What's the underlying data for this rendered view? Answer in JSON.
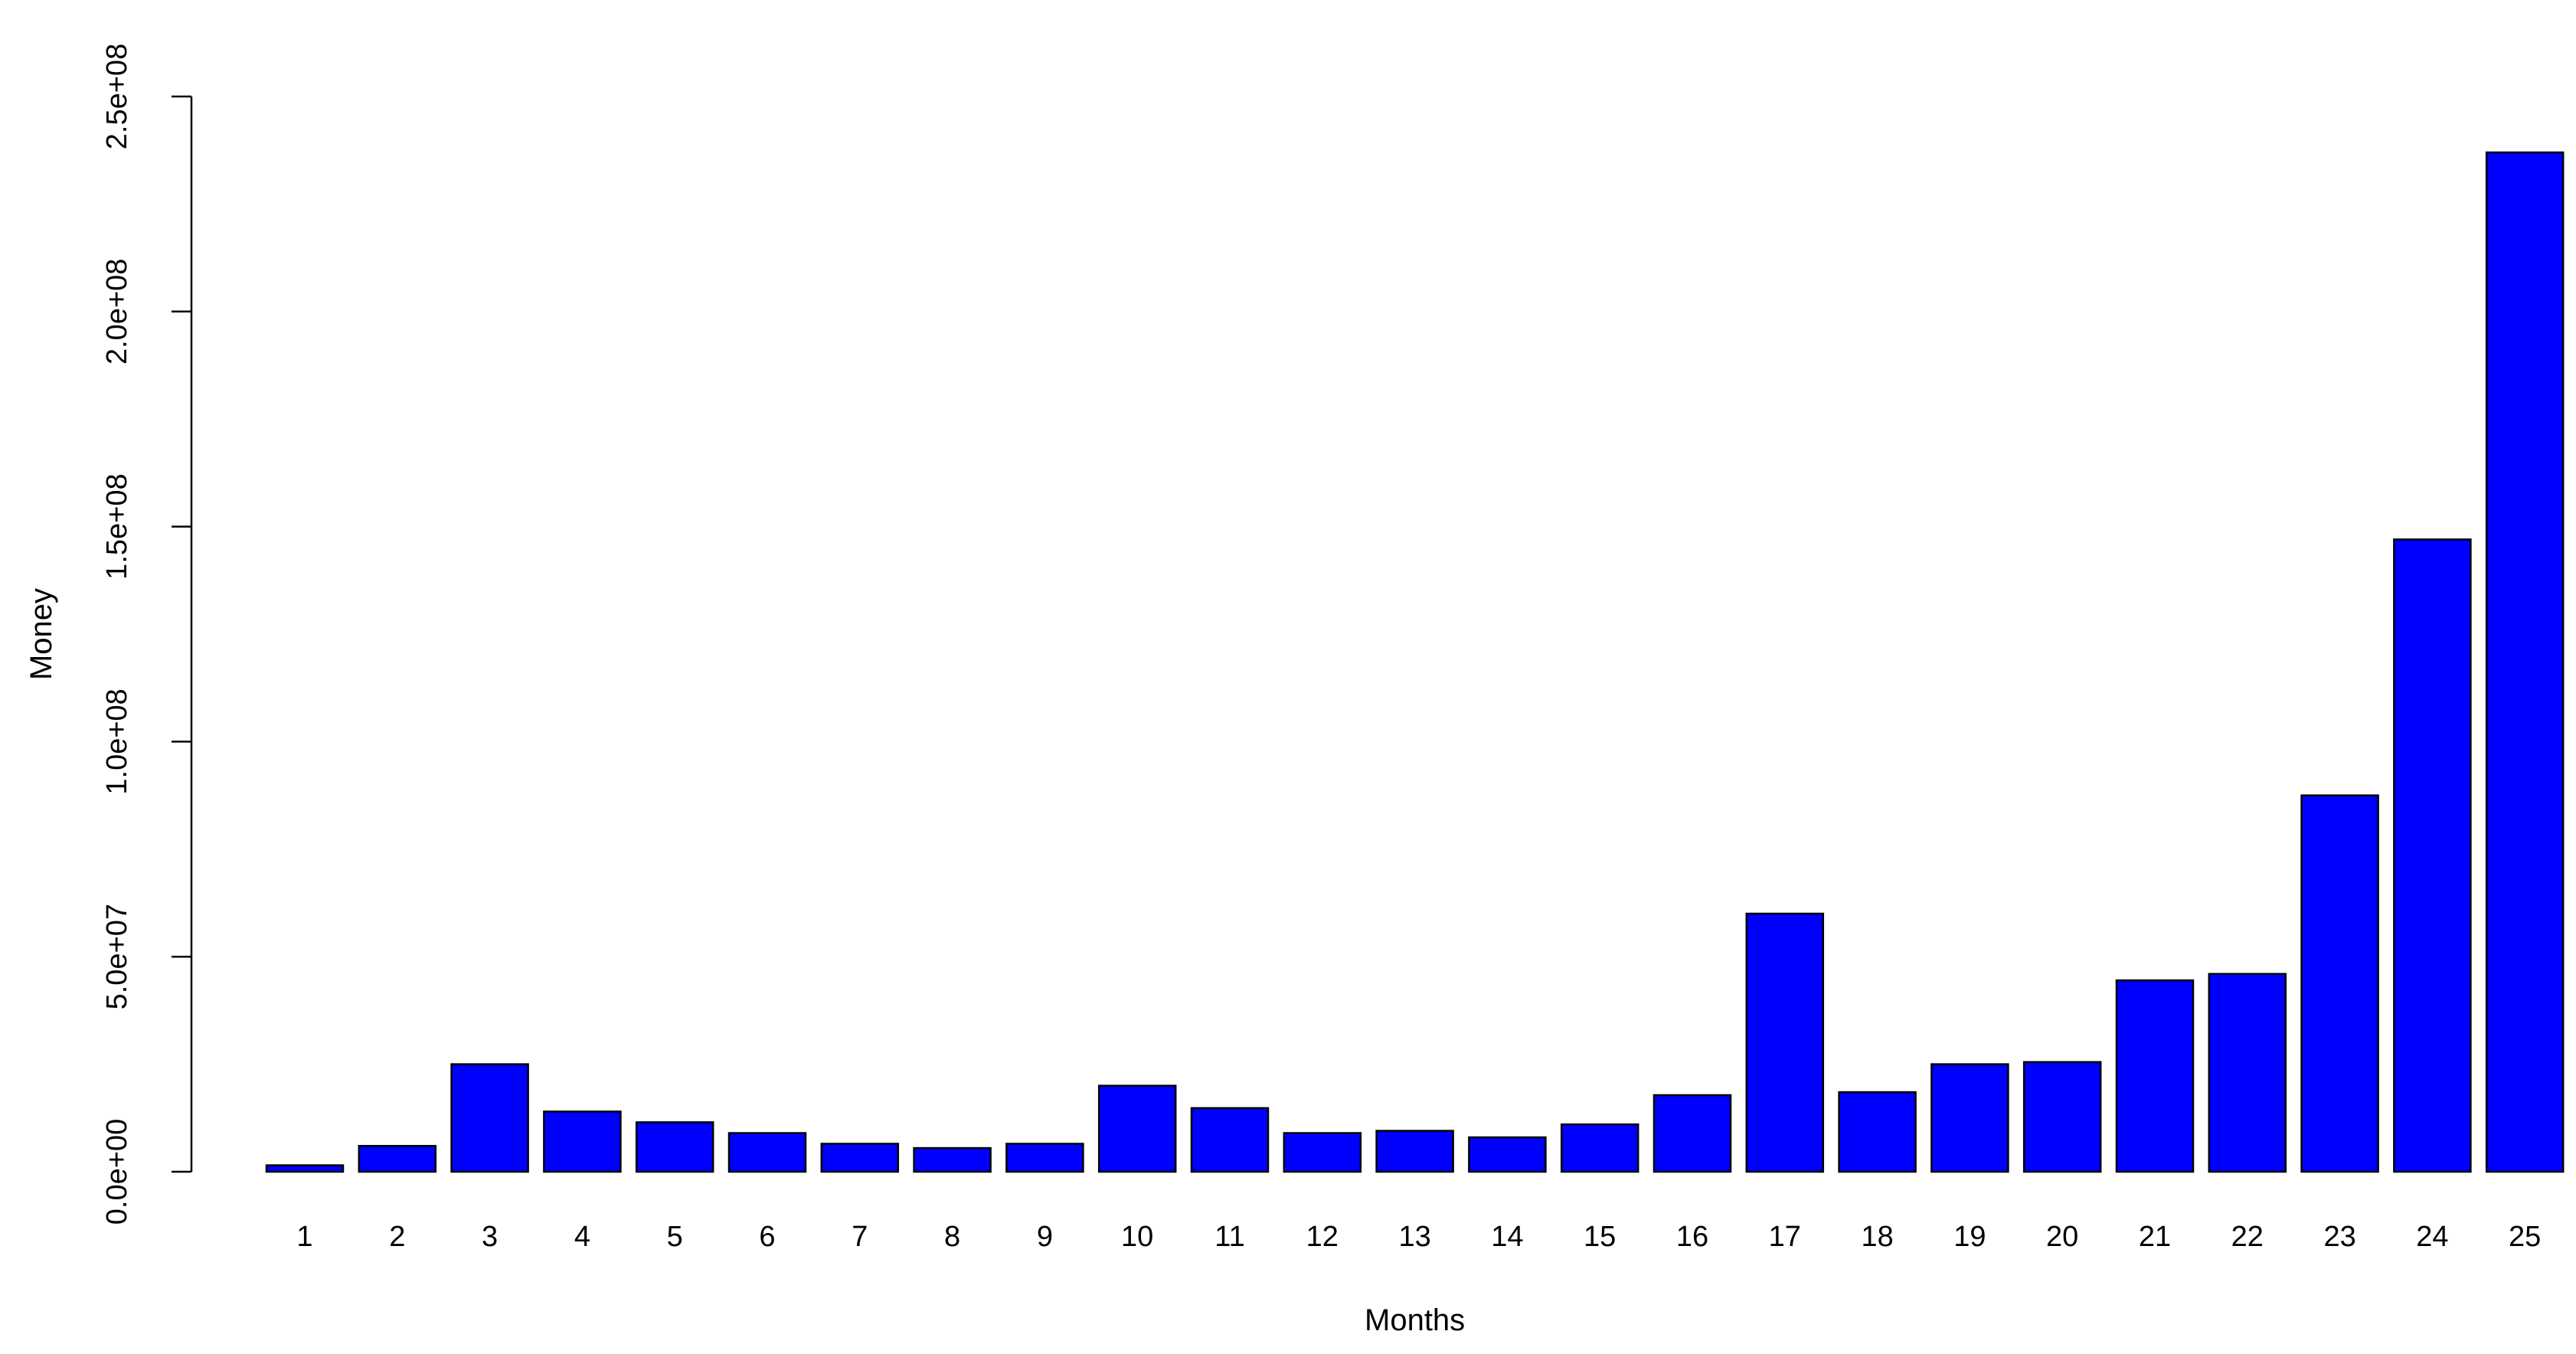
{
  "chart_data": {
    "type": "bar",
    "title": "",
    "xlabel": "Months",
    "ylabel": "Money",
    "categories": [
      "1",
      "2",
      "3",
      "4",
      "5",
      "6",
      "7",
      "8",
      "9",
      "10",
      "11",
      "12",
      "13",
      "14",
      "15",
      "16",
      "17",
      "18",
      "19",
      "20",
      "21",
      "22",
      "23",
      "24",
      "25"
    ],
    "values": [
      1500000,
      6000000,
      25000000,
      14000000,
      11500000,
      9000000,
      6500000,
      5500000,
      6500000,
      20000000,
      14800000,
      9000000,
      9500000,
      8000000,
      11000000,
      17800000,
      60000000,
      18500000,
      25000000,
      25500000,
      44500000,
      46000000,
      87500000,
      147000000,
      237000000
    ],
    "ylim": [
      0,
      250000000
    ],
    "yticks": [
      0,
      50000000,
      100000000,
      150000000,
      200000000,
      250000000
    ],
    "ytick_labels": [
      "0.0e+00",
      "5.0e+07",
      "1.0e+08",
      "1.5e+08",
      "2.0e+08",
      "2.5e+08"
    ],
    "bar_color": "#0000FF",
    "grid": false,
    "legend": "none"
  }
}
